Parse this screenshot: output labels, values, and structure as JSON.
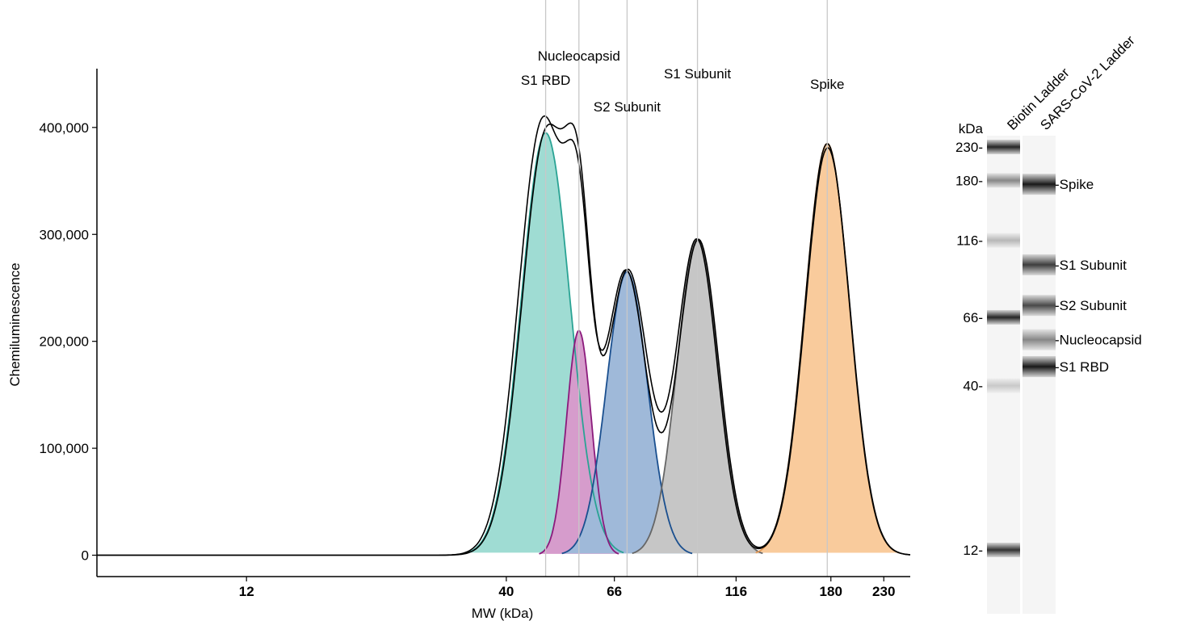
{
  "chart_data": [
    {
      "type": "area",
      "xlabel": "MW (kDa)",
      "ylabel": "Chemiluminescence",
      "x_scale": "log",
      "xlim": [
        6,
        260
      ],
      "ylim": [
        -20000,
        455000
      ],
      "x_ticks": [
        {
          "value": 12,
          "label": "12"
        },
        {
          "value": 40,
          "label": "40"
        },
        {
          "value": 66,
          "label": "66"
        },
        {
          "value": 116,
          "label": "116"
        },
        {
          "value": 180,
          "label": "180"
        },
        {
          "value": 230,
          "label": "230"
        }
      ],
      "y_ticks": [
        {
          "value": 0,
          "label": "0"
        },
        {
          "value": 100000,
          "label": "100,000"
        },
        {
          "value": 200000,
          "label": "200,000"
        },
        {
          "value": 300000,
          "label": "300,000"
        },
        {
          "value": 400000,
          "label": "400,000"
        }
      ],
      "grid": false,
      "peaks": [
        {
          "name": "S1 RBD",
          "mw": 48,
          "height": 395000,
          "width": 0.049,
          "fill": "#9fdcd3",
          "edge": "#2aa394"
        },
        {
          "name": "Nucleocapsid",
          "mw": 56,
          "height": 210000,
          "width": 0.025,
          "fill": "#d69ccc",
          "edge": "#8b1a7c"
        },
        {
          "name": "S2 Subunit",
          "mw": 70,
          "height": 265000,
          "width": 0.041,
          "fill": "#9fb9d9",
          "edge": "#1a4f8f"
        },
        {
          "name": "S1 Subunit",
          "mw": 97,
          "height": 295000,
          "width": 0.041,
          "fill": "#c6c6c6",
          "edge": "#666666"
        },
        {
          "name": "Spike",
          "mw": 177,
          "height": 385000,
          "width": 0.045,
          "fill": "#f9cb9c",
          "edge": "#e69a55"
        }
      ]
    },
    {
      "type": "gel",
      "unit_label": "kDa",
      "lanes": [
        {
          "name": "Biotin Ladder"
        },
        {
          "name": "SARS-CoV-2 Ladder"
        }
      ],
      "mw_markers": [
        {
          "mw": 230,
          "label": "230-"
        },
        {
          "mw": 180,
          "label": "180-"
        },
        {
          "mw": 116,
          "label": "116-"
        },
        {
          "mw": 66,
          "label": "66-"
        },
        {
          "mw": 40,
          "label": "40-"
        },
        {
          "mw": 12,
          "label": "12-"
        }
      ],
      "ladder_bands": [
        {
          "mw": 230,
          "intensity": 0.85
        },
        {
          "mw": 180,
          "intensity": 0.45
        },
        {
          "mw": 116,
          "intensity": 0.25
        },
        {
          "mw": 66,
          "intensity": 0.85
        },
        {
          "mw": 40,
          "intensity": 0.18
        },
        {
          "mw": 12,
          "intensity": 0.8
        }
      ],
      "sample_bands": [
        {
          "mw": 175,
          "label": "-Spike",
          "intensity": 0.9
        },
        {
          "mw": 97,
          "label": "-S1 Subunit",
          "intensity": 0.75
        },
        {
          "mw": 72,
          "label": "-S2 Subunit",
          "intensity": 0.7
        },
        {
          "mw": 56,
          "label": "-Nucleocapsid",
          "intensity": 0.45
        },
        {
          "mw": 46,
          "label": "-S1 RBD",
          "intensity": 0.9
        }
      ]
    }
  ]
}
